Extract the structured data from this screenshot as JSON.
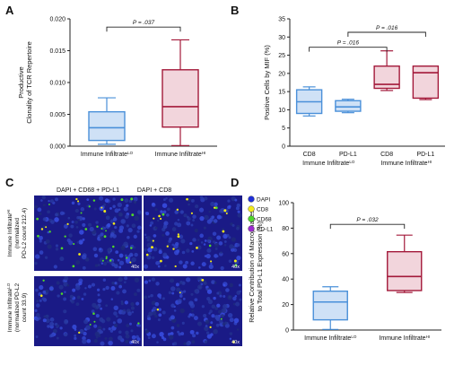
{
  "figure": {
    "panel_letters": [
      "A",
      "B",
      "C",
      "D"
    ]
  },
  "colors": {
    "lo_fill": "#cfe1f6",
    "lo_stroke": "#4a90d9",
    "hi_fill": "#f2d5dc",
    "hi_stroke": "#a3193a",
    "axis": "#222222",
    "micro_bg": "#1a1a86"
  },
  "chart_data": [
    {
      "panel": "A",
      "type": "box",
      "ylabel": "Productive\nClonality of TCR Repertoire",
      "ylim": [
        0,
        0.02
      ],
      "yticks": [
        "0.000",
        "0.005",
        "0.010",
        "0.015",
        "0.020"
      ],
      "yticks_values": [
        0,
        0.005,
        0.01,
        0.015,
        0.02
      ],
      "categories": [
        {
          "label": "Immune Infiltrate",
          "sup": "LO",
          "group": "lo"
        },
        {
          "label": "Immune Infiltrate",
          "sup": "HI",
          "group": "hi"
        }
      ],
      "boxes": [
        {
          "min": 0.0003,
          "q1": 0.0009,
          "median": 0.0029,
          "q3": 0.0054,
          "max": 0.0076
        },
        {
          "min": 0.0001,
          "q1": 0.003,
          "median": 0.0062,
          "q3": 0.012,
          "max": 0.0167
        }
      ],
      "annotations": [
        {
          "text": "P = .037",
          "from": 0,
          "to": 1,
          "y": 0.0187
        }
      ]
    },
    {
      "panel": "B",
      "type": "box",
      "ylabel": "Positive Cells by MIF (%)",
      "ylim": [
        0,
        35
      ],
      "yticks": [
        "0",
        "5",
        "10",
        "15",
        "20",
        "25",
        "30",
        "35"
      ],
      "yticks_values": [
        0,
        5,
        10,
        15,
        20,
        25,
        30,
        35
      ],
      "categories": [
        {
          "label": "CD8",
          "group": "lo"
        },
        {
          "label": "PD-L1",
          "group": "lo"
        },
        {
          "label": "CD8",
          "group": "hi"
        },
        {
          "label": "PD-L1",
          "group": "hi"
        }
      ],
      "group_labels": [
        {
          "label": "Immune Infiltrate",
          "sup": "LO",
          "span": [
            0,
            1
          ]
        },
        {
          "label": "Immune Infiltrate",
          "sup": "HI",
          "span": [
            2,
            3
          ]
        }
      ],
      "boxes": [
        {
          "min": 8.3,
          "q1": 9.0,
          "median": 12.2,
          "q3": 15.5,
          "max": 16.3
        },
        {
          "min": 9.2,
          "q1": 9.6,
          "median": 10.8,
          "q3": 12.5,
          "max": 12.9
        },
        {
          "min": 15.3,
          "q1": 15.9,
          "median": 17.0,
          "q3": 22.0,
          "max": 26.2
        },
        {
          "min": 12.8,
          "q1": 13.2,
          "median": 20.2,
          "q3": 22.0,
          "max": 22.0
        }
      ],
      "annotations": [
        {
          "text": "P = .016",
          "from": 0,
          "to": 2,
          "y": 27.2
        },
        {
          "text": "P = .016",
          "from": 1,
          "to": 3,
          "y": 31.3
        }
      ]
    },
    {
      "panel": "D",
      "type": "box",
      "ylabel": "Relative Contribution of Macrophages\nto Total PD-L1 Expression (%)",
      "ylim": [
        0,
        100
      ],
      "yticks": [
        "0",
        "20",
        "40",
        "60",
        "80",
        "100"
      ],
      "yticks_values": [
        0,
        20,
        40,
        60,
        80,
        100
      ],
      "categories": [
        {
          "label": "Immune Infiltrate",
          "sup": "LO",
          "group": "lo"
        },
        {
          "label": "Immune Infiltrate",
          "sup": "HI",
          "group": "hi"
        }
      ],
      "boxes": [
        {
          "min": 0.5,
          "q1": 8.0,
          "median": 22.0,
          "q3": 30.5,
          "max": 34.0
        },
        {
          "min": 29.5,
          "q1": 31.0,
          "median": 42.0,
          "q3": 61.5,
          "max": 74.5
        }
      ],
      "annotations": [
        {
          "text": "P = .032",
          "from": 0,
          "to": 1,
          "y": 83.0
        }
      ]
    }
  ],
  "micrographs": {
    "column_headers": [
      "DAPI + CD68 + PD-L1",
      "DAPI + CD8"
    ],
    "row_labels": [
      {
        "prefix": "Immune Infiltrate",
        "sup": "HI",
        "lines": [
          "(normalized",
          "PD-L2 count 212.4)"
        ]
      },
      {
        "prefix": "Immune Infiltrate",
        "sup": "LO",
        "lines": [
          "(normalized PD-L2",
          "count 33.9)"
        ]
      }
    ],
    "magnification": "40x",
    "legend": [
      {
        "label": "DAPI",
        "color": "#1f2fd8"
      },
      {
        "label": "CD8",
        "color": "#f2ea1a"
      },
      {
        "label": "CD68",
        "color": "#4fd62a"
      },
      {
        "label": "PD-L1",
        "color": "#9b2ad0"
      }
    ]
  }
}
